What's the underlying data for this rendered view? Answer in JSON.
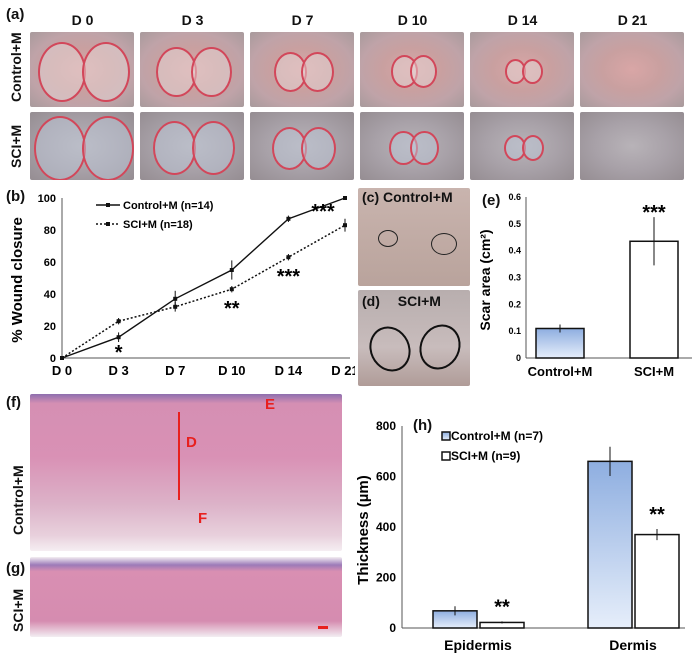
{
  "panels": {
    "a": {
      "label": "(a)",
      "columns": [
        "D 0",
        "D 3",
        "D 7",
        "D 10",
        "D 14",
        "D 21"
      ],
      "rows": [
        "Control+M",
        "SCI+M"
      ]
    },
    "b": {
      "label": "(b)"
    },
    "c": {
      "label": "(c)",
      "title": "Control+M"
    },
    "d": {
      "label": "(d)",
      "title": "SCI+M"
    },
    "e": {
      "label": "(e)"
    },
    "f": {
      "label": "(f)",
      "row": "Control+M",
      "annotations": {
        "E": "E",
        "D": "D",
        "F": "F"
      }
    },
    "g": {
      "label": "(g)",
      "row": "SCI+M"
    },
    "h": {
      "label": "(h)"
    }
  },
  "colors": {
    "control_fill_top": "#8eaee0",
    "control_fill_bottom": "#e6eefa",
    "sci_fill": "#ffffff",
    "annotation_red": "#e8201e"
  },
  "chart_data": [
    {
      "id": "b",
      "type": "line",
      "ylabel": "% Wound closure",
      "xlabel": "",
      "categories": [
        "D 0",
        "D 3",
        "D 7",
        "D 10",
        "D 14",
        "D 21"
      ],
      "ylim": [
        0,
        100
      ],
      "yticks": [
        0,
        20,
        40,
        60,
        80,
        100
      ],
      "legend_position": "top-left",
      "series": [
        {
          "name": "Control+M (n=14)",
          "style": "solid",
          "marker": "square",
          "values": [
            0,
            13,
            37,
            55,
            87,
            100
          ],
          "errors": [
            0,
            3,
            5,
            6,
            2,
            0
          ]
        },
        {
          "name": "SCI+M (n=18)",
          "style": "dotted",
          "marker": "diamond",
          "values": [
            0,
            23,
            32,
            43,
            63,
            83
          ],
          "errors": [
            0,
            2,
            3,
            2,
            2,
            4
          ]
        }
      ],
      "significance": [
        {
          "category": "D 3",
          "text": "*"
        },
        {
          "category": "D 10",
          "text": "**"
        },
        {
          "category": "D 14",
          "text": "***"
        },
        {
          "category": "D 21",
          "text": "***"
        }
      ]
    },
    {
      "id": "e",
      "type": "bar",
      "ylabel": "Scar area (cm²)",
      "categories": [
        "Control+M",
        "SCI+M"
      ],
      "values": [
        0.11,
        0.435
      ],
      "errors": [
        0.015,
        0.09
      ],
      "ylim": [
        0,
        0.6
      ],
      "yticks": [
        "0",
        "0.1",
        "0.2",
        "0.3",
        "0.4",
        "0.5",
        "0.6"
      ],
      "significance": [
        {
          "category": "SCI+M",
          "text": "***"
        }
      ]
    },
    {
      "id": "h",
      "type": "bar",
      "ylabel": "Thickness (µm)",
      "categories": [
        "Epidermis",
        "Dermis"
      ],
      "ylim": [
        0,
        800
      ],
      "yticks": [
        0,
        200,
        400,
        600,
        800
      ],
      "legend_position": "top-left",
      "series": [
        {
          "name": "Control+M (n=7)",
          "values": [
            68,
            660
          ],
          "errors": [
            18,
            58
          ]
        },
        {
          "name": "SCI+M (n=9)",
          "values": [
            22,
            370
          ],
          "errors": [
            4,
            22
          ]
        }
      ],
      "significance": [
        {
          "category": "Epidermis",
          "text": "**"
        },
        {
          "category": "Dermis",
          "text": "**"
        }
      ]
    }
  ]
}
